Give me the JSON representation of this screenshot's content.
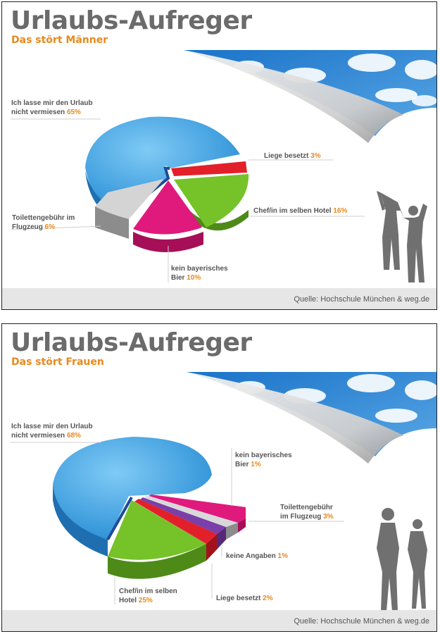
{
  "chart_data": [
    {
      "type": "pie",
      "title": "Urlaubs-Aufreger",
      "subtitle": "Das stört Männer",
      "source": "Quelle: Hochschule München & weg.de",
      "slices": [
        {
          "line1": "Ich lasse mir den Urlaub",
          "line2": "nicht vermiesen",
          "pct": "65%",
          "value": 65,
          "color": "#3aa4e2"
        },
        {
          "line1": "Liege besetzt",
          "line2": "",
          "pct": "3%",
          "value": 3,
          "color": "#e2202a"
        },
        {
          "line1": "Chef/in im selben Hotel",
          "line2": "",
          "pct": "16%",
          "value": 16,
          "color": "#76c229"
        },
        {
          "line1": "kein bayerisches",
          "line2": "Bier",
          "pct": "10%",
          "value": 10,
          "color": "#e0197d"
        },
        {
          "line1": "Toilettengebühr im",
          "line2": "Flugzeug",
          "pct": "6%",
          "value": 6,
          "color": "#c8c8c8"
        }
      ]
    },
    {
      "type": "pie",
      "title": "Urlaubs-Aufreger",
      "subtitle": "Das stört Frauen",
      "source": "Quelle: Hochschule München & weg.de",
      "slices": [
        {
          "line1": "Ich lasse mir den Urlaub",
          "line2": "nicht vermiesen",
          "pct": "68%",
          "value": 68,
          "color": "#3aa4e2"
        },
        {
          "line1": "kein bayerisches",
          "line2": "Bier",
          "pct": "1%",
          "value": 1,
          "color": "#e0197d"
        },
        {
          "line1": "Toilettengebühr",
          "line2": "im Flugzeug",
          "pct": "3%",
          "value": 3,
          "color": "#c8c8c8"
        },
        {
          "line1": "keine Angaben",
          "line2": "",
          "pct": "1%",
          "value": 1,
          "color": "#7a3fa8"
        },
        {
          "line1": "Liege besetzt",
          "line2": "",
          "pct": "2%",
          "value": 2,
          "color": "#e2202a"
        },
        {
          "line1": "Chef/in im selben",
          "line2": "Hotel",
          "pct": "25%",
          "value": 25,
          "color": "#76c229"
        }
      ]
    }
  ]
}
